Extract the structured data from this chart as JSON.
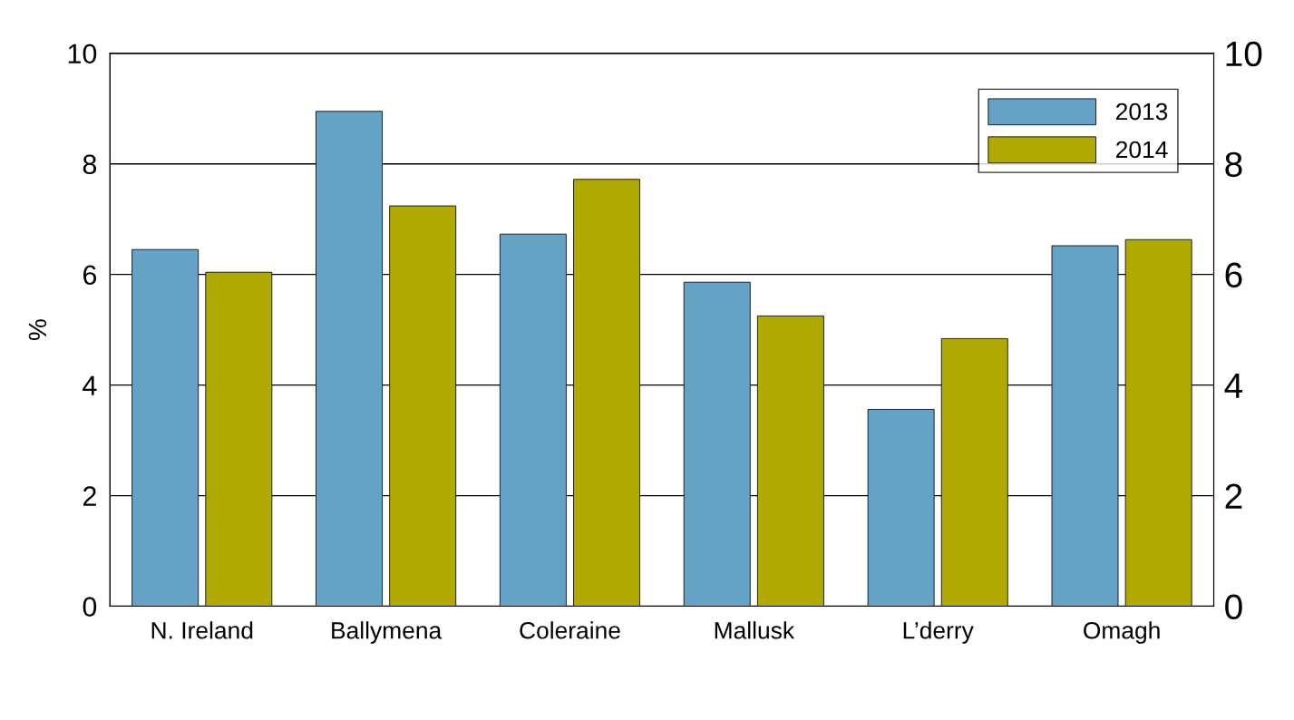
{
  "chart_data": {
    "type": "bar",
    "ylabel": "%",
    "categories": [
      "N. Ireland",
      "Ballymena",
      "Coleraine",
      "Mallusk",
      "L’derry",
      "Omagh"
    ],
    "series": [
      {
        "name": "2013",
        "color": "#65a3c6",
        "values": [
          6.45,
          8.95,
          6.73,
          5.86,
          3.56,
          6.52
        ]
      },
      {
        "name": "2014",
        "color": "#b2a900",
        "values": [
          6.04,
          7.24,
          7.72,
          5.25,
          4.84,
          6.63
        ]
      }
    ],
    "ylim": [
      0,
      10
    ],
    "yticks": [
      0,
      2,
      4,
      6,
      8,
      10
    ],
    "y2lim": [
      0,
      10
    ],
    "y2ticks": [
      0,
      2,
      4,
      6,
      8,
      10
    ],
    "grid": "y",
    "legend": "top right"
  }
}
